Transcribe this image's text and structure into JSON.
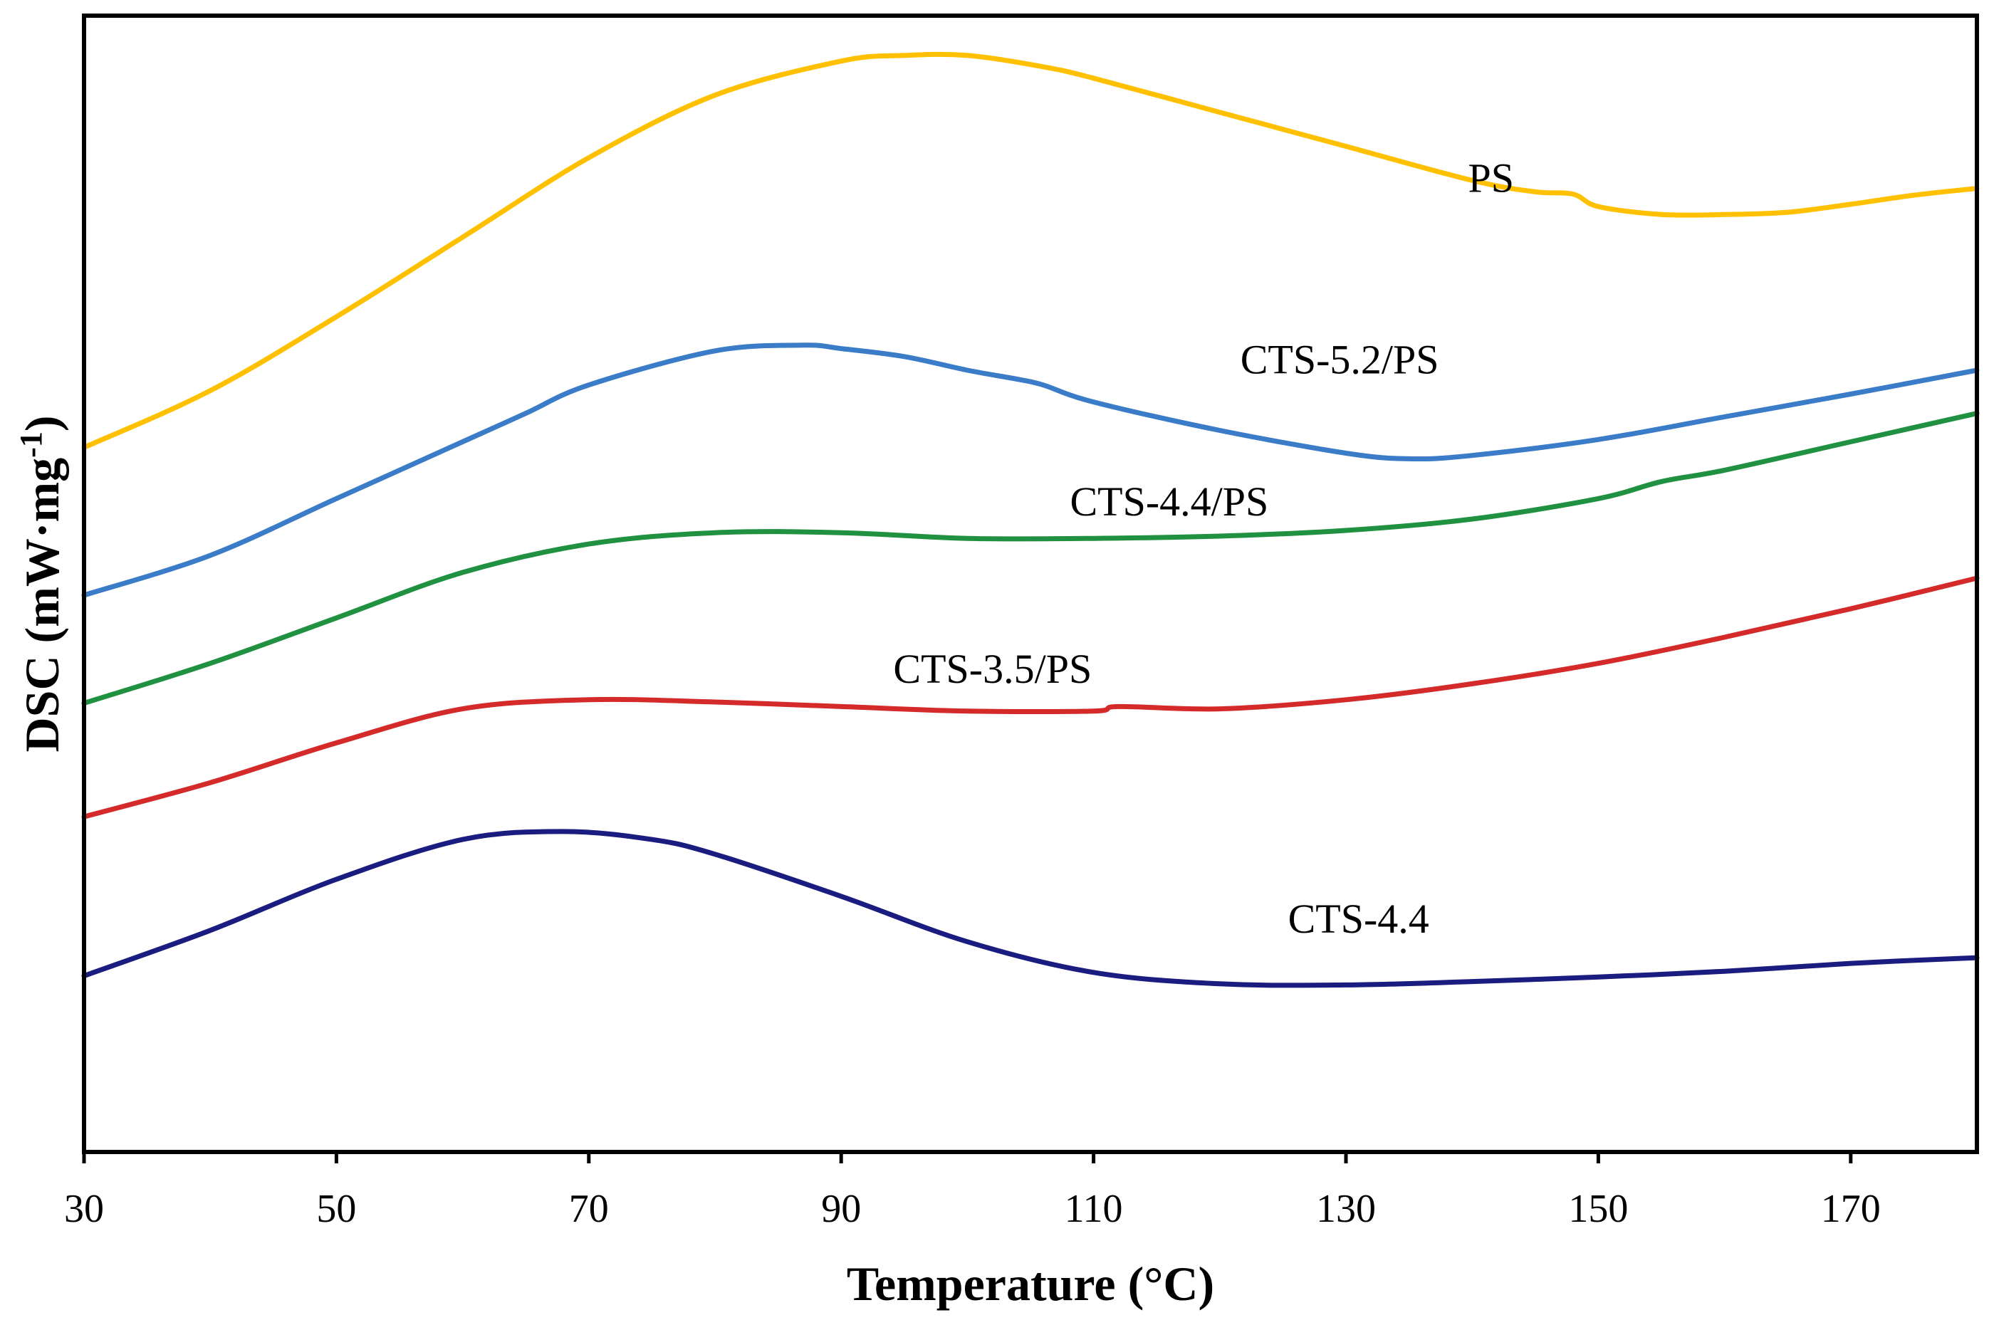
{
  "chart_data": {
    "type": "line",
    "title": "",
    "xlabel": "Temperature (°C)",
    "ylabel_main": "DSC (mW·mg",
    "ylabel_sup": "-1",
    "ylabel_close": ")",
    "xlim": [
      30,
      180
    ],
    "ylim": [
      0,
      100
    ],
    "xticks": [
      30,
      50,
      70,
      90,
      110,
      130,
      150,
      170
    ],
    "yticks_shown": false,
    "grid": false,
    "legend": "inline labels",
    "series": [
      {
        "name": "PS",
        "color": "#ffc000",
        "label_at": [
          141.5,
          84.5
        ],
        "x": [
          30,
          40,
          50,
          60,
          70,
          80,
          90,
          95,
          100,
          106,
          110,
          120,
          130,
          140,
          145,
          148,
          150,
          155,
          160,
          165,
          170,
          175,
          180
        ],
        "y": [
          62,
          67,
          73.5,
          80.5,
          87.5,
          93,
          96,
          96.5,
          96.5,
          95.5,
          94.5,
          91.5,
          88.5,
          85.5,
          84.5,
          84.3,
          83.2,
          82.5,
          82.5,
          82.7,
          83.4,
          84.2,
          84.8
        ]
      },
      {
        "name": "CTS-5.2/PS",
        "color": "#3a7cc7",
        "label_at": [
          129.5,
          68.5
        ],
        "x": [
          30,
          40,
          50,
          60,
          65,
          70,
          80,
          87,
          90,
          95,
          100,
          104,
          106,
          110,
          120,
          130,
          135,
          140,
          150,
          160,
          170,
          180
        ],
        "y": [
          49,
          52.5,
          57.5,
          62.5,
          65,
          67.5,
          70.5,
          71,
          70.7,
          70,
          68.8,
          68,
          67.5,
          66,
          63.5,
          61.5,
          61,
          61.3,
          62.7,
          64.7,
          66.7,
          68.8
        ]
      },
      {
        "name": "CTS-4.4/PS",
        "color": "#1f9140",
        "label_at": [
          116,
          56
        ],
        "x": [
          30,
          40,
          50,
          60,
          70,
          80,
          90,
          100,
          110,
          120,
          130,
          140,
          150,
          155,
          160,
          170,
          180
        ],
        "y": [
          39.5,
          43,
          47,
          51,
          53.5,
          54.5,
          54.5,
          54,
          54,
          54.2,
          54.7,
          55.7,
          57.5,
          59,
          60,
          62.5,
          65
        ]
      },
      {
        "name": "CTS-3.5/PS",
        "color": "#d42a2a",
        "label_at": [
          102,
          41.3
        ],
        "x": [
          30,
          40,
          50,
          60,
          70,
          80,
          90,
          100,
          110,
          112,
          120,
          130,
          140,
          150,
          160,
          170,
          180
        ],
        "y": [
          29.5,
          32.5,
          36,
          39,
          39.8,
          39.6,
          39.2,
          38.8,
          38.8,
          39.2,
          39,
          39.8,
          41.2,
          43,
          45.3,
          47.8,
          50.5
        ]
      },
      {
        "name": "CTS-4.4",
        "color": "#1b1c80",
        "label_at": [
          131,
          19.3
        ],
        "x": [
          30,
          40,
          50,
          60,
          68,
          75,
          80,
          90,
          100,
          110,
          120,
          130,
          140,
          150,
          160,
          170,
          180
        ],
        "y": [
          15.5,
          19.5,
          24,
          27.5,
          28.2,
          27.5,
          26.2,
          22.5,
          18.5,
          15.8,
          14.8,
          14.7,
          15,
          15.4,
          15.9,
          16.6,
          17.1
        ]
      }
    ]
  }
}
